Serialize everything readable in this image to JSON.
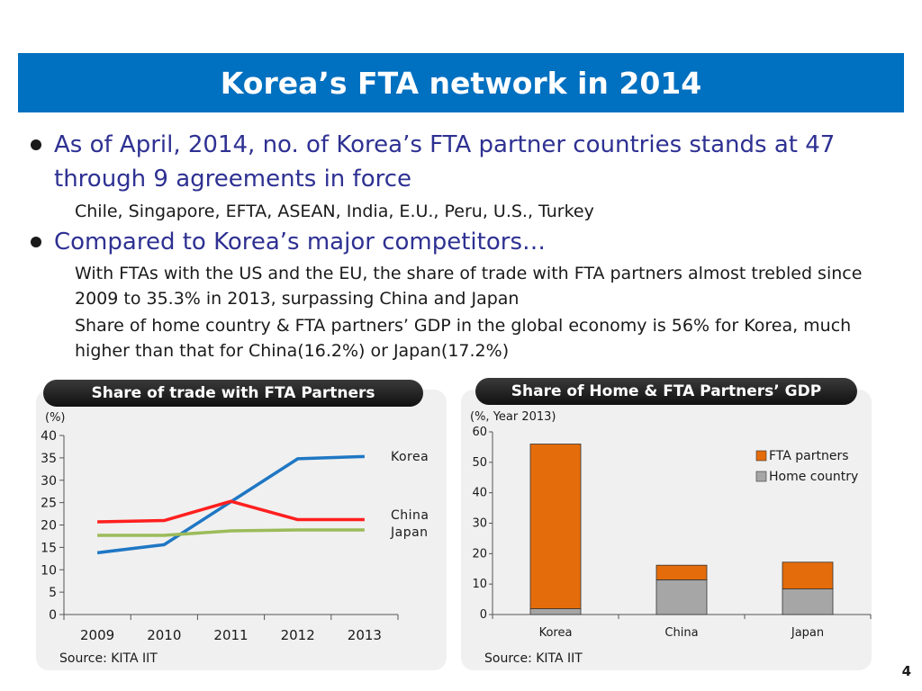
{
  "slide": {
    "title": "Korea’s FTA network in 2014",
    "page_number": "4"
  },
  "bullets": [
    {
      "text": "As of April, 2014, no. of Korea’s FTA partner countries stands at 47 through 9 agreements in force",
      "sub": [
        "Chile, Singapore, EFTA, ASEAN, India, E.U., Peru, U.S., Turkey"
      ]
    },
    {
      "text": "Compared to Korea’s major competitors…",
      "sub": [
        "With FTAs with the US and the EU, the share of trade with FTA partners almost trebled since 2009 to 35.3% in 2013, surpassing China and Japan",
        "Share of home country & FTA partners’ GDP in the global economy is 56% for Korea, much higher than that for China(16.2%) or Japan(17.2%)"
      ]
    }
  ],
  "chart_data": [
    {
      "type": "line",
      "title": "Share of trade with FTA Partners",
      "ylabel": "(%)",
      "x": [
        "2009",
        "2010",
        "2011",
        "2012",
        "2013"
      ],
      "ylim": [
        0,
        40
      ],
      "yticks": [
        0,
        5,
        10,
        15,
        20,
        25,
        30,
        35,
        40
      ],
      "series": [
        {
          "name": "Korea",
          "values": [
            13.8,
            15.6,
            25.2,
            34.8,
            35.3
          ],
          "color": "#1f77c4"
        },
        {
          "name": "China",
          "values": [
            20.7,
            21.0,
            25.3,
            21.2,
            21.2
          ],
          "color": "#ff1f1f"
        },
        {
          "name": "Japan",
          "values": [
            17.7,
            17.7,
            18.7,
            18.9,
            18.9
          ],
          "color": "#9bbb59"
        }
      ],
      "legend": "right",
      "source": "Source: KITA IIT"
    },
    {
      "type": "bar",
      "stacked": true,
      "title": "Share of Home & FTA Partners’ GDP",
      "ylabel": "(%, Year 2013)",
      "categories": [
        "Korea",
        "China",
        "Japan"
      ],
      "ylim": [
        0,
        60
      ],
      "yticks": [
        0,
        10,
        20,
        30,
        40,
        50,
        60
      ],
      "series": [
        {
          "name": "Home country",
          "values": [
            1.9,
            11.4,
            8.4
          ],
          "color": "#a6a6a6"
        },
        {
          "name": "FTA partners",
          "values": [
            54.1,
            4.8,
            8.8
          ],
          "color": "#e46c0a"
        }
      ],
      "legend": "top-right",
      "source": "Source: KITA IIT"
    }
  ]
}
